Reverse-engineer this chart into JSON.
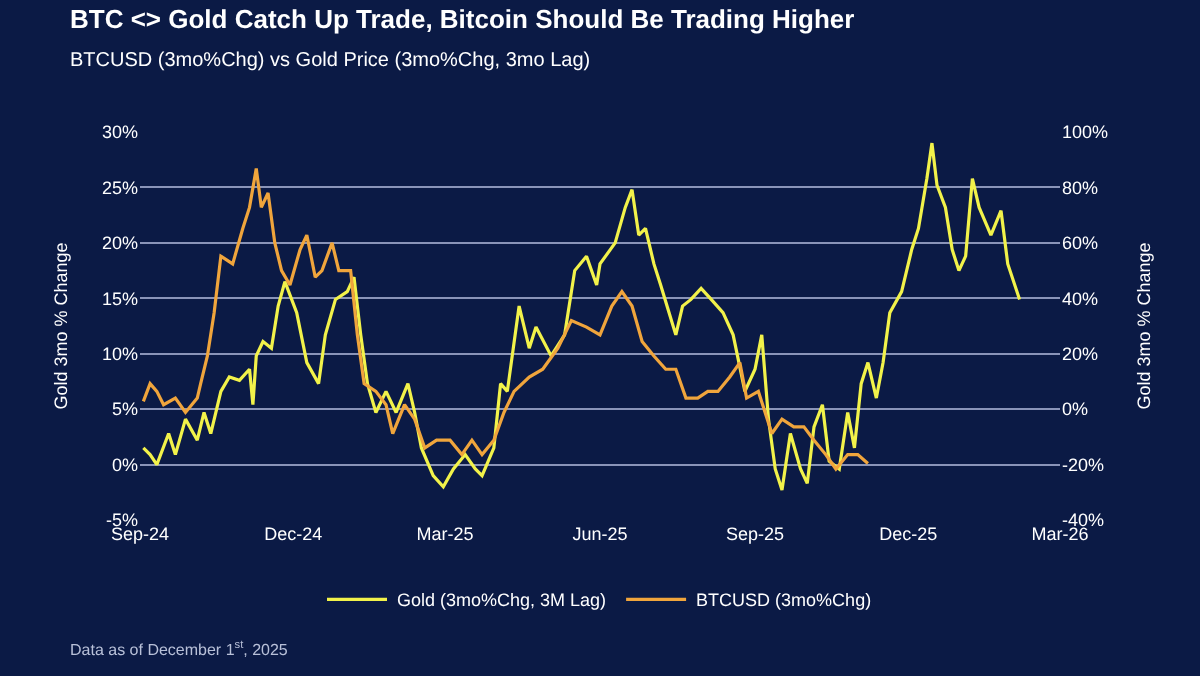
{
  "chart_data": {
    "type": "line",
    "title": "BTC <> Gold Catch Up Trade, Bitcoin Should Be Trading Higher",
    "subtitle": "BTCUSD (3mo%Chg) vs Gold Price (3mo%Chg, 3mo Lag)",
    "ylabel": "Gold 3mo % Change",
    "y2label": "Gold 3mo % Change",
    "annotations": [
      "Data as of December 1$^{st}$, 2025"
    ],
    "xlim": [
      "2024-09-01",
      "2026-03-01"
    ],
    "xticks": [
      {
        "value": "2024-09-01",
        "label": "Sep-24"
      },
      {
        "value": "2024-12-01",
        "label": "Dec-24"
      },
      {
        "value": "2025-03-01",
        "label": "Mar-25"
      },
      {
        "value": "2025-06-01",
        "label": "Jun-25"
      },
      {
        "value": "2025-09-01",
        "label": "Sep-25"
      },
      {
        "value": "2025-12-01",
        "label": "Dec-25"
      },
      {
        "value": "2026-03-01",
        "label": "Mar-26"
      }
    ],
    "ylim": [
      -5,
      30
    ],
    "yticks": [
      {
        "value": -5,
        "label": "-5%"
      },
      {
        "value": 0,
        "label": "0%"
      },
      {
        "value": 5,
        "label": "5%"
      },
      {
        "value": 10,
        "label": "10%"
      },
      {
        "value": 15,
        "label": "15%"
      },
      {
        "value": 20,
        "label": "20%"
      },
      {
        "value": 25,
        "label": "25%"
      },
      {
        "value": 30,
        "label": "30%"
      }
    ],
    "y2lim": [
      -40,
      100
    ],
    "y2ticks": [
      {
        "value": -40,
        "label": "-40%"
      },
      {
        "value": -20,
        "label": "-20%"
      },
      {
        "value": 0,
        "label": "0%"
      },
      {
        "value": 20,
        "label": "20%"
      },
      {
        "value": 40,
        "label": "40%"
      },
      {
        "value": 60,
        "label": "60%"
      },
      {
        "value": 80,
        "label": "80%"
      },
      {
        "value": 100,
        "label": "100%"
      }
    ],
    "grid": "y",
    "legend": "bottom",
    "marker": "none",
    "line_style": "solid",
    "series": [
      {
        "name": "Gold (3mo%Chg, 3M Lag)",
        "color": "#f2f24a",
        "axis": "y",
        "x": [
          "2024-09-03",
          "2024-09-07",
          "2024-09-11",
          "2024-09-18",
          "2024-09-22",
          "2024-09-28",
          "2024-10-05",
          "2024-10-09",
          "2024-10-13",
          "2024-10-19",
          "2024-10-24",
          "2024-10-30",
          "2024-11-05",
          "2024-11-07",
          "2024-11-09",
          "2024-11-13",
          "2024-11-18",
          "2024-11-22",
          "2024-11-26",
          "2024-12-03",
          "2024-12-09",
          "2024-12-16",
          "2024-12-20",
          "2024-12-26",
          "2025-01-02",
          "2025-01-06",
          "2025-01-10",
          "2025-01-14",
          "2025-01-19",
          "2025-01-25",
          "2025-01-31",
          "2025-02-07",
          "2025-02-11",
          "2025-02-15",
          "2025-02-22",
          "2025-02-28",
          "2025-03-06",
          "2025-03-13",
          "2025-03-19",
          "2025-03-23",
          "2025-03-30",
          "2025-04-03",
          "2025-04-07",
          "2025-04-14",
          "2025-04-20",
          "2025-04-24",
          "2025-05-03",
          "2025-05-11",
          "2025-05-17",
          "2025-05-24",
          "2025-05-30",
          "2025-06-01",
          "2025-06-10",
          "2025-06-16",
          "2025-06-20",
          "2025-06-24",
          "2025-06-28",
          "2025-07-03",
          "2025-07-07",
          "2025-07-12",
          "2025-07-16",
          "2025-07-20",
          "2025-07-25",
          "2025-07-31",
          "2025-08-06",
          "2025-08-13",
          "2025-08-19",
          "2025-08-26",
          "2025-09-01",
          "2025-09-05",
          "2025-09-09",
          "2025-09-13",
          "2025-09-17",
          "2025-09-22",
          "2025-09-28",
          "2025-10-02",
          "2025-10-06",
          "2025-10-11",
          "2025-10-15",
          "2025-10-21",
          "2025-10-26",
          "2025-10-30",
          "2025-11-03",
          "2025-11-07",
          "2025-11-12",
          "2025-11-16",
          "2025-11-20",
          "2025-11-27",
          "2025-12-03",
          "2025-12-07",
          "2025-12-12",
          "2025-12-15",
          "2025-12-18",
          "2025-12-23",
          "2025-12-27",
          "2025-12-31",
          "2026-01-04",
          "2026-01-08",
          "2026-01-12",
          "2026-01-19",
          "2026-01-25",
          "2026-01-29",
          "2026-02-05"
        ],
        "values": [
          1.5,
          0.9,
          0,
          2.8,
          0.9,
          4.1,
          2.2,
          4.7,
          2.8,
          6.6,
          7.9,
          7.6,
          8.6,
          5.4,
          9.8,
          11.1,
          10.5,
          14.3,
          16.5,
          13.7,
          9.2,
          7.3,
          11.7,
          14.9,
          15.6,
          16.9,
          11.7,
          7.3,
          4.7,
          6.6,
          4.7,
          7.3,
          4.7,
          1.5,
          -1.0,
          -2.0,
          -0.4,
          0.9,
          -0.4,
          -1.0,
          1.5,
          7.3,
          6.6,
          14.3,
          10.5,
          12.4,
          9.8,
          11.7,
          17.5,
          18.8,
          16.2,
          18.1,
          20,
          23.2,
          24.8,
          20.7,
          21.3,
          18.1,
          16.2,
          13.7,
          11.7,
          14.3,
          14.9,
          15.9,
          14.9,
          13.7,
          11.7,
          6.6,
          8.6,
          11.7,
          4.1,
          -0.4,
          -2.3,
          2.8,
          -0.4,
          -1.7,
          3.4,
          5.4,
          0.3,
          -0.4,
          4.7,
          1.5,
          7.3,
          9.2,
          6.0,
          9.2,
          13.7,
          15.6,
          19.4,
          21.3,
          25.8,
          29.0,
          25.2,
          23.2,
          19.4,
          17.5,
          18.8,
          25.8,
          23.2,
          20.7,
          22.9,
          18.1,
          14.9
        ]
      },
      {
        "name": "BTCUSD (3mo%Chg)",
        "color": "#f0a53c",
        "axis": "y2",
        "x": [
          "2024-09-03",
          "2024-09-07",
          "2024-09-11",
          "2024-09-15",
          "2024-09-22",
          "2024-09-28",
          "2024-10-05",
          "2024-10-07",
          "2024-10-11",
          "2024-10-15",
          "2024-10-19",
          "2024-10-26",
          "2024-11-01",
          "2024-11-05",
          "2024-11-09",
          "2024-11-12",
          "2024-11-16",
          "2024-11-20",
          "2024-11-24",
          "2024-11-29",
          "2024-12-05",
          "2024-12-09",
          "2024-12-14",
          "2024-12-18",
          "2024-12-24",
          "2024-12-28",
          "2025-01-04",
          "2025-01-08",
          "2025-01-12",
          "2025-01-19",
          "2025-01-25",
          "2025-01-29",
          "2025-02-05",
          "2025-02-11",
          "2025-02-17",
          "2025-02-24",
          "2025-03-04",
          "2025-03-11",
          "2025-03-17",
          "2025-03-23",
          "2025-03-30",
          "2025-04-05",
          "2025-04-11",
          "2025-04-20",
          "2025-04-28",
          "2025-05-07",
          "2025-05-15",
          "2025-05-24",
          "2025-06-01",
          "2025-06-08",
          "2025-06-14",
          "2025-06-20",
          "2025-06-26",
          "2025-07-03",
          "2025-07-10",
          "2025-07-16",
          "2025-07-22",
          "2025-07-29",
          "2025-08-04",
          "2025-08-10",
          "2025-08-17",
          "2025-08-23",
          "2025-08-27",
          "2025-09-03",
          "2025-09-07",
          "2025-09-11",
          "2025-09-17",
          "2025-09-24",
          "2025-09-30",
          "2025-10-06",
          "2025-10-13",
          "2025-10-19",
          "2025-10-26",
          "2025-11-01",
          "2025-11-07"
        ],
        "values": [
          2.8,
          9.2,
          6.4,
          1.6,
          4,
          -1.2,
          4,
          9.2,
          19.2,
          34.8,
          55.2,
          52.4,
          65.2,
          72.8,
          86.8,
          72.8,
          78,
          60,
          50,
          44.8,
          57.6,
          62.8,
          47.6,
          50,
          60,
          50,
          50,
          26.8,
          9.2,
          6.4,
          1.6,
          -8.8,
          1.6,
          -3.6,
          -14,
          -11.2,
          -11.2,
          -16.4,
          -11.2,
          -16.4,
          -11.2,
          -1.2,
          6.4,
          11.6,
          14.4,
          22,
          32,
          29.6,
          26.8,
          37.2,
          42.4,
          37.2,
          24.4,
          19.2,
          14.4,
          14.4,
          4,
          4,
          6.4,
          6.4,
          11.6,
          16.8,
          4,
          6.4,
          -1.2,
          -8.8,
          -3.6,
          -6.4,
          -6.4,
          -11.2,
          -16.4,
          -21.6,
          -16.4,
          -16.4,
          -19.6
        ]
      }
    ]
  }
}
